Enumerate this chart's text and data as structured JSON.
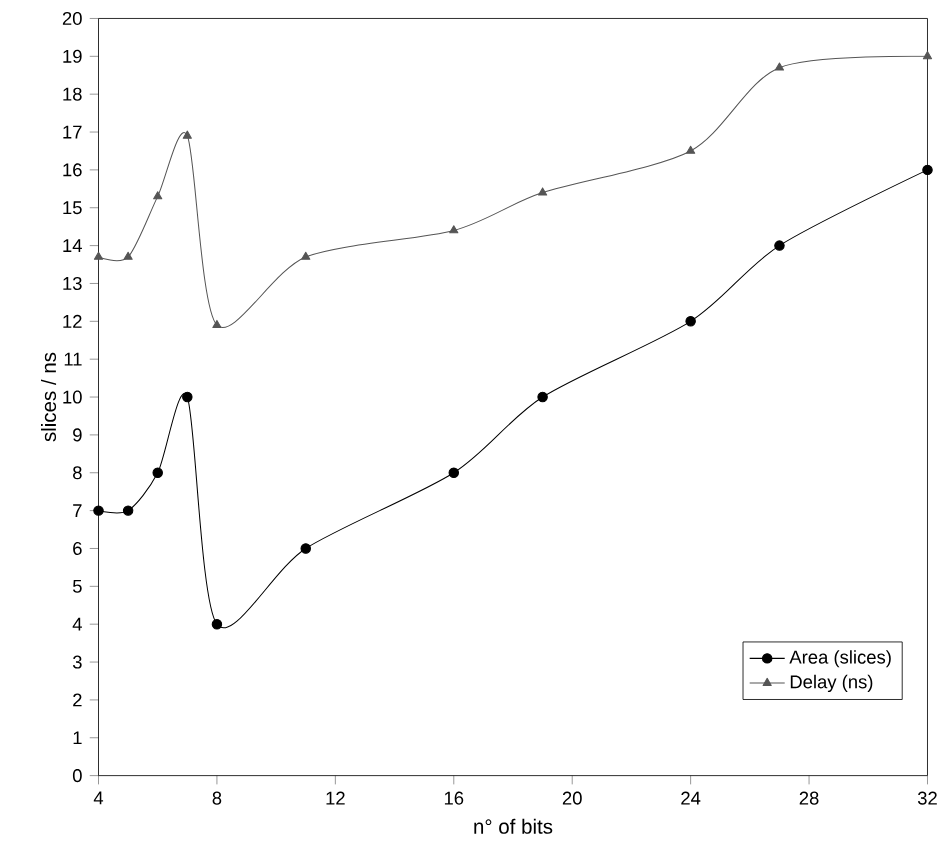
{
  "chart_data": {
    "type": "line",
    "xlabel": "n° of bits",
    "ylabel": "slices / ns",
    "x": [
      4,
      5,
      6,
      7,
      8,
      11,
      16,
      19,
      24,
      27,
      32
    ],
    "series": [
      {
        "name": "Area (slices)",
        "color": "#000000",
        "marker": "circle",
        "values": [
          7,
          7,
          8,
          10,
          4,
          6,
          8,
          10,
          12,
          14,
          16
        ]
      },
      {
        "name": "Delay (ns)",
        "color": "#555555",
        "marker": "triangle",
        "values": [
          13.7,
          13.7,
          15.3,
          16.9,
          11.9,
          13.7,
          14.4,
          15.4,
          16.5,
          18.7,
          19.0
        ]
      }
    ],
    "xlim": [
      4,
      32
    ],
    "xticks": [
      4,
      8,
      12,
      16,
      20,
      24,
      28,
      32
    ],
    "ylim": [
      0,
      20
    ],
    "yticks": [
      0,
      1,
      2,
      3,
      4,
      5,
      6,
      7,
      8,
      9,
      10,
      11,
      12,
      13,
      14,
      15,
      16,
      17,
      18,
      19,
      20
    ],
    "grid": false,
    "legend": "bottom right",
    "line_style": "solid"
  }
}
